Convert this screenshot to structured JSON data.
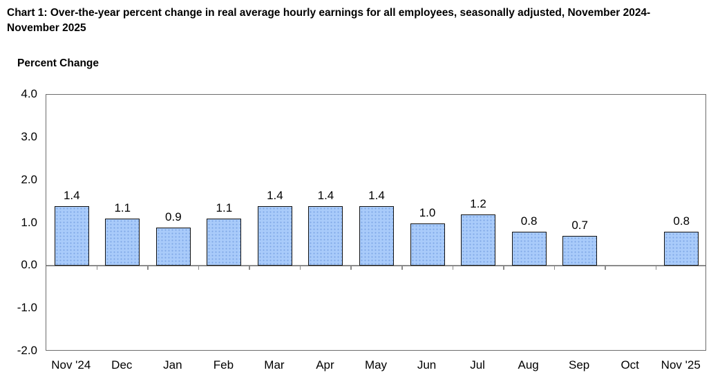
{
  "title": "Chart 1: Over-the-year percent change in real average hourly earnings for all employees, seasonally adjusted, November 2024-November 2025",
  "y_axis_title": "Percent Change",
  "chart_data": {
    "type": "bar",
    "title": "Chart 1: Over-the-year percent change in real average hourly earnings for all employees, seasonally adjusted, November 2024-November 2025",
    "xlabel": "",
    "ylabel": "Percent Change",
    "categories": [
      "Nov '24",
      "Dec",
      "Jan",
      "Feb",
      "Mar",
      "Apr",
      "May",
      "Jun",
      "Jul",
      "Aug",
      "Sep",
      "Oct",
      "Nov '25"
    ],
    "values": [
      1.4,
      1.1,
      0.9,
      1.1,
      1.4,
      1.4,
      1.4,
      1.0,
      1.2,
      0.8,
      0.7,
      null,
      0.8
    ],
    "bar_labels": [
      "1.4",
      "1.1",
      "0.9",
      "1.1",
      "1.4",
      "1.4",
      "1.4",
      "1.0",
      "1.2",
      "0.8",
      "0.7",
      "",
      "0.8"
    ],
    "ylim": [
      -2.0,
      4.0
    ],
    "y_ticks": [
      4.0,
      3.0,
      2.0,
      1.0,
      0.0,
      -1.0,
      -2.0
    ],
    "y_tick_labels": [
      "4.0",
      "3.0",
      "2.0",
      "1.0",
      "0.0",
      "-1.0",
      "-2.0"
    ],
    "grid": false,
    "legend_position": "none",
    "colors": {
      "bar_fill": "#a9cbfa",
      "bar_dot": "#7fa7e6",
      "bar_border": "#111111",
      "axis_line": "#8a8a8a",
      "plot_border": "#6b6b6b",
      "text": "#000000"
    }
  }
}
